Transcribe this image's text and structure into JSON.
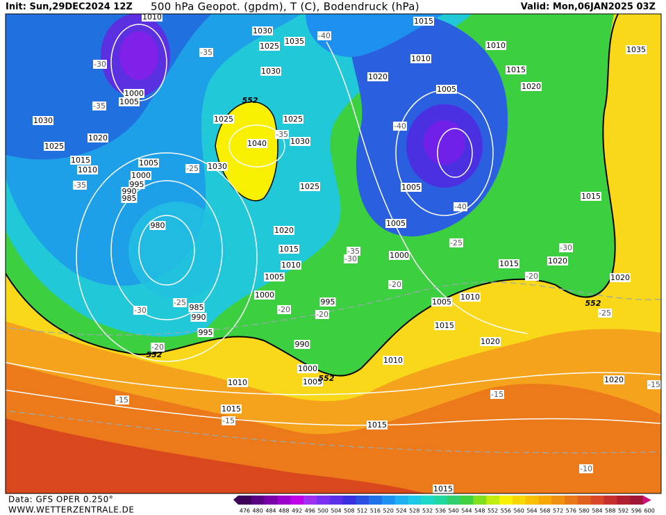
{
  "header": {
    "init": "Init: Sun,29DEC2024 12Z",
    "title": "500 hPa Geopot. (gpdm), T (C), Bodendruck (hPa)",
    "valid": "Valid: Mon,06JAN2025 03Z"
  },
  "footer": {
    "data": "Data: GFS OPER 0.250°",
    "site": "WWW.WETTERZENTRALE.DE"
  },
  "colorbar": {
    "labels": [
      476,
      480,
      484,
      488,
      492,
      496,
      500,
      504,
      508,
      512,
      516,
      520,
      524,
      528,
      532,
      536,
      540,
      544,
      548,
      552,
      556,
      560,
      564,
      568,
      572,
      576,
      580,
      584,
      588,
      592,
      596,
      600
    ],
    "colors": [
      "#3d0058",
      "#5a0080",
      "#7a00a8",
      "#9a00c8",
      "#c000e8",
      "#a030f0",
      "#7a30f0",
      "#5a30e8",
      "#3a30e0",
      "#2a50e0",
      "#2070e8",
      "#1e90f0",
      "#1eb0f0",
      "#20c8e8",
      "#20d8c8",
      "#20d8a0",
      "#30d070",
      "#40d040",
      "#80e020",
      "#c0ec10",
      "#f8f000",
      "#f8d800",
      "#f8c000",
      "#f8a800",
      "#f09010",
      "#e87818",
      "#e06020",
      "#d84828",
      "#c83030",
      "#b02030",
      "#a01838",
      "#d0107a"
    ]
  },
  "map": {
    "pressure_labels": [
      "1010",
      "1030",
      "1035",
      "1025",
      "1015",
      "1010",
      "1010",
      "1035",
      "1015",
      "1020",
      "1030",
      "1020",
      "1005",
      "1000",
      "1005",
      "1030",
      "1025",
      "1025",
      "1030",
      "1040",
      "1020",
      "1025",
      "1015",
      "1005",
      "1030",
      "1010",
      "1000",
      "995",
      "990",
      "985",
      "1025",
      "1005",
      "1015",
      "1005",
      "980",
      "1020",
      "1015",
      "1000",
      "1010",
      "1015",
      "1020",
      "1005",
      "1020",
      "1000",
      "995",
      "1005",
      "1010",
      "985",
      "990",
      "1015",
      "995",
      "1020",
      "990",
      "1010",
      "1000",
      "1005",
      "1010",
      "1020",
      "1015",
      "1015",
      "1015"
    ],
    "temperature_labels": [
      "-40",
      "-35",
      "-30",
      "-35",
      "-40",
      "-35",
      "-25",
      "-35",
      "-40",
      "-25",
      "-30",
      "-30",
      "-20",
      "-20",
      "-25",
      "-20",
      "-20",
      "-30",
      "-25",
      "-20",
      "-15",
      "-15",
      "-15",
      "-15",
      "-10",
      "-35"
    ],
    "height_labels": [
      "552",
      "552",
      "552",
      "552"
    ]
  }
}
